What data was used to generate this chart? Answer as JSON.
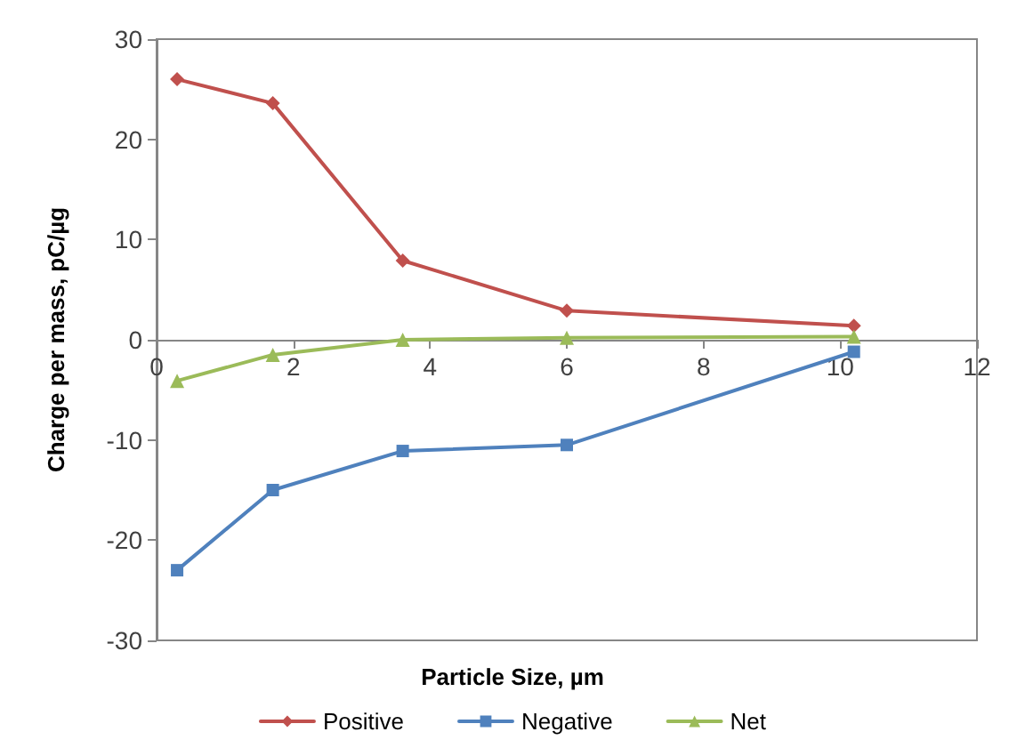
{
  "chart_data": {
    "type": "line",
    "xlabel": "Particle Size, µm",
    "ylabel": "Charge per mass, pC/µg",
    "x": [
      0.3,
      1.7,
      3.6,
      6.0,
      10.2
    ],
    "series": [
      {
        "name": "Positive",
        "color": "#c0504d",
        "marker": "diamond",
        "values": [
          26.0,
          23.6,
          7.9,
          2.9,
          1.4
        ]
      },
      {
        "name": "Negative",
        "color": "#4f81bd",
        "marker": "square",
        "values": [
          -23.0,
          -15.0,
          -11.1,
          -10.5,
          -1.2
        ]
      },
      {
        "name": "Net",
        "color": "#9bbb59",
        "marker": "triangle",
        "values": [
          -4.1,
          -1.5,
          0.0,
          0.2,
          0.3
        ]
      }
    ],
    "xlim": [
      0,
      12
    ],
    "xticks": [
      0,
      2,
      4,
      6,
      8,
      10,
      12
    ],
    "ylim": [
      -30,
      30
    ],
    "yticks": [
      -30,
      -20,
      -10,
      0,
      10,
      20,
      30
    ],
    "grid": false,
    "legend": "bottom",
    "line_style": "solid"
  }
}
